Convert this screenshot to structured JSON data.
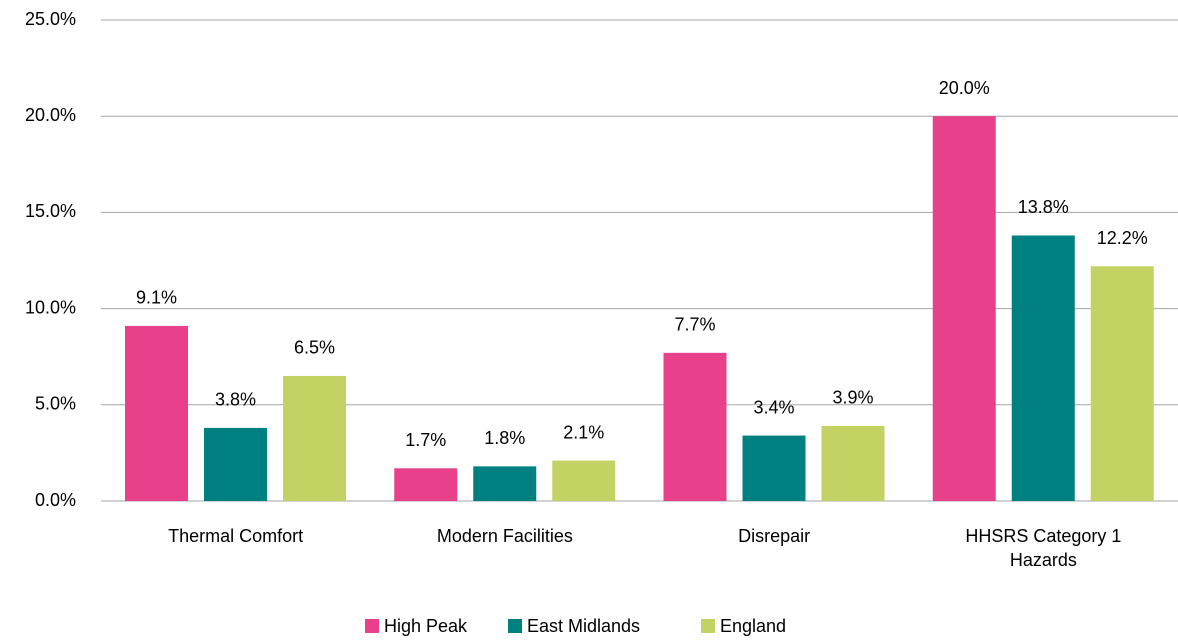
{
  "chart_data": {
    "type": "bar",
    "categories": [
      "Thermal Comfort",
      "Modern Facilities",
      "Disrepair",
      "HHSRS Category 1 Hazards"
    ],
    "series": [
      {
        "name": "High Peak",
        "color": "#e8408a",
        "values": [
          9.1,
          1.7,
          7.7,
          20.0
        ],
        "value_labels": [
          "9.1%",
          "1.7%",
          "7.7%",
          "20.0%"
        ]
      },
      {
        "name": "East Midlands",
        "color": "#008080",
        "values": [
          3.8,
          1.8,
          3.4,
          13.8
        ],
        "value_labels": [
          "3.8%",
          "1.8%",
          "3.4%",
          "13.8%"
        ]
      },
      {
        "name": "England",
        "color": "#c3d263",
        "values": [
          6.5,
          2.1,
          3.9,
          12.2
        ],
        "value_labels": [
          "6.5%",
          "2.1%",
          "3.9%",
          "12.2%"
        ]
      }
    ],
    "ylim": [
      0,
      25
    ],
    "yticks": [
      {
        "value": 0,
        "label": "0.0%"
      },
      {
        "value": 5,
        "label": "5.0%"
      },
      {
        "value": 10,
        "label": "10.0%"
      },
      {
        "value": 15,
        "label": "15.0%"
      },
      {
        "value": 20,
        "label": "20.0%"
      },
      {
        "value": 25,
        "label": "25.0%"
      }
    ],
    "grid": true,
    "legend": "bottom"
  }
}
